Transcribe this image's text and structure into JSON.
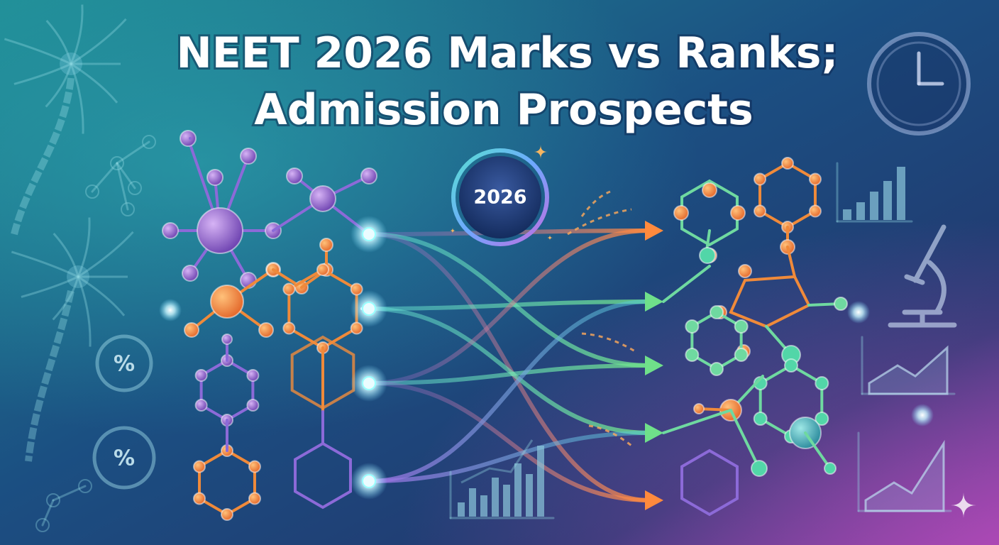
{
  "title": {
    "lines": [
      "NEET 2026 Marks vs Ranks;",
      "Admission Prospects"
    ]
  },
  "badge": {
    "label": "2026"
  },
  "icons": {
    "percent": [
      "%",
      "%"
    ]
  }
}
